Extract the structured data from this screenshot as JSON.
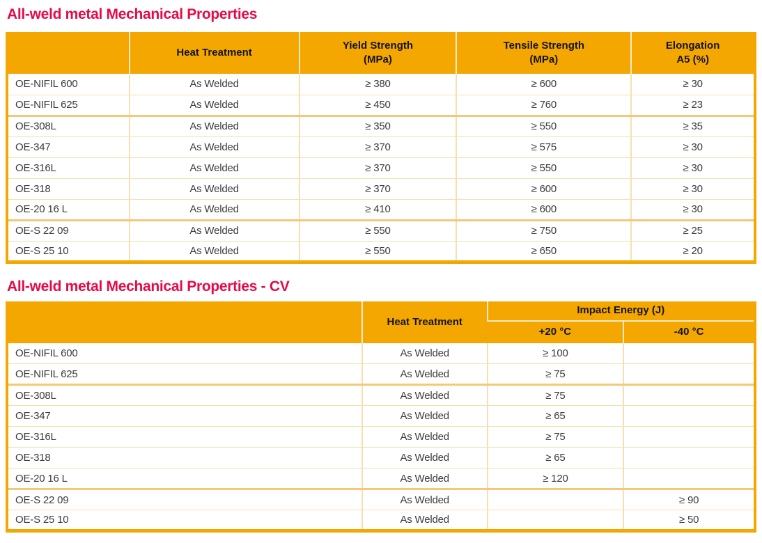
{
  "colors": {
    "header_orange": "#F4A701",
    "title_red": "#E60A46",
    "row_divider": "#F8DFAE",
    "group_divider": "#F3C878",
    "body_text": "#3b3b3b"
  },
  "section1": {
    "title": "All-weld metal Mechanical Properties",
    "table": {
      "columns": [
        {
          "label": "",
          "sub": ""
        },
        {
          "label": "Heat Treatment",
          "sub": ""
        },
        {
          "label": "Yield Strength",
          "sub": "(MPa)"
        },
        {
          "label": "Tensile Strength",
          "sub": "(MPa)"
        },
        {
          "label": "Elongation",
          "sub": "A5 (%)"
        }
      ],
      "group_breaks": [
        2,
        7
      ],
      "rows": [
        [
          "OE-NIFIL 600",
          "As Welded",
          "≥ 380",
          "≥ 600",
          "≥ 30"
        ],
        [
          "OE-NIFIL 625",
          "As Welded",
          "≥ 450",
          "≥ 760",
          "≥ 23"
        ],
        [
          "OE-308L",
          "As Welded",
          "≥ 350",
          "≥ 550",
          "≥ 35"
        ],
        [
          "OE-347",
          "As Welded",
          "≥ 370",
          "≥ 575",
          "≥ 30"
        ],
        [
          "OE-316L",
          "As Welded",
          "≥ 370",
          "≥ 550",
          "≥ 30"
        ],
        [
          "OE-318",
          "As Welded",
          "≥ 370",
          "≥ 600",
          "≥ 30"
        ],
        [
          "OE-20 16 L",
          "As Welded",
          "≥ 410",
          "≥ 600",
          "≥ 30"
        ],
        [
          "OE-S 22 09",
          "As Welded",
          "≥ 550",
          "≥ 750",
          "≥ 25"
        ],
        [
          "OE-S 25 10",
          "As Welded",
          "≥ 550",
          "≥ 650",
          "≥ 20"
        ]
      ]
    }
  },
  "section2": {
    "title": "All-weld metal Mechanical Properties - CV",
    "table": {
      "heat_treatment_label": "Heat Treatment",
      "impact_energy_label": "Impact Energy (J)",
      "temp_columns": [
        "+20 °C",
        "-40 °C"
      ],
      "group_breaks": [
        2,
        7
      ],
      "rows": [
        [
          "OE-NIFIL 600",
          "As Welded",
          "≥ 100",
          ""
        ],
        [
          "OE-NIFIL 625",
          "As Welded",
          "≥ 75",
          ""
        ],
        [
          "OE-308L",
          "As Welded",
          "≥ 75",
          ""
        ],
        [
          "OE-347",
          "As Welded",
          "≥ 65",
          ""
        ],
        [
          "OE-316L",
          "As Welded",
          "≥ 75",
          ""
        ],
        [
          "OE-318",
          "As Welded",
          "≥ 65",
          ""
        ],
        [
          "OE-20 16 L",
          "As Welded",
          "≥ 120",
          ""
        ],
        [
          "OE-S 22 09",
          "As Welded",
          "",
          "≥ 90"
        ],
        [
          "OE-S 25 10",
          "As Welded",
          "",
          "≥ 50"
        ]
      ]
    }
  }
}
